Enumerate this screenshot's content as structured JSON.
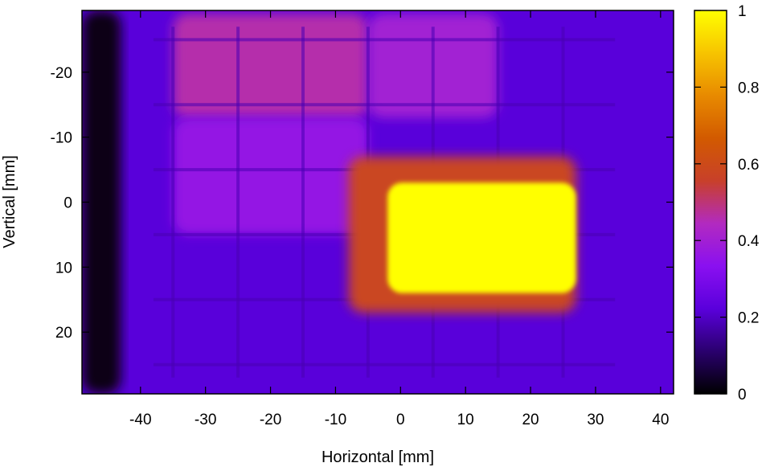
{
  "chart_data": {
    "type": "heatmap",
    "title": "",
    "xlabel": "Horizontal [mm]",
    "ylabel": "Vertical [mm]",
    "xlim": [
      -49,
      42
    ],
    "ylim": [
      -29.5,
      29.5
    ],
    "y_inverted": true,
    "x_ticks": [
      -40,
      -30,
      -20,
      -10,
      0,
      10,
      20,
      30,
      40
    ],
    "y_ticks": [
      -20,
      -10,
      0,
      10,
      20
    ],
    "colorbar": {
      "range": [
        0,
        1
      ],
      "ticks": [
        0,
        0.2,
        0.4,
        0.6,
        0.8,
        1
      ],
      "tick_labels": [
        "0",
        "0.2",
        "0.4",
        "0.6",
        "0.8",
        "1"
      ],
      "colormap": [
        "#000000",
        "#2a006e",
        "#5a00dc",
        "#8a10f0",
        "#b22ac0",
        "#c8402a",
        "#d25a00",
        "#e88a00",
        "#f7c400",
        "#ffff00"
      ]
    },
    "grid_cell_mm": 10,
    "grid_lines_x": [
      -35,
      -25,
      -15,
      -5,
      5,
      15,
      25
    ],
    "grid_lines_y": [
      -25,
      -15,
      -5,
      5,
      15,
      25
    ],
    "regions": [
      {
        "name": "background",
        "x": [
          -49,
          42
        ],
        "y": [
          -29.5,
          29.5
        ],
        "value": 0.22
      },
      {
        "name": "left-dark-edge",
        "x": [
          -49,
          -43
        ],
        "y": [
          -29.5,
          29.5
        ],
        "value": 0.02
      },
      {
        "name": "upper-left-field",
        "x": [
          -35,
          -5
        ],
        "y": [
          -29,
          -13
        ],
        "value": 0.46
      },
      {
        "name": "upper-mid-field",
        "x": [
          -5,
          15
        ],
        "y": [
          -29,
          -13
        ],
        "value": 0.4
      },
      {
        "name": "mid-left-field",
        "x": [
          -35,
          -5
        ],
        "y": [
          -13,
          5
        ],
        "value": 0.36
      },
      {
        "name": "hot-spot-halo",
        "x": [
          -8,
          27
        ],
        "y": [
          -7,
          17
        ],
        "value": 0.58
      },
      {
        "name": "hot-spot",
        "x": [
          -2,
          27
        ],
        "y": [
          -3,
          14
        ],
        "value": 1.0
      }
    ]
  }
}
